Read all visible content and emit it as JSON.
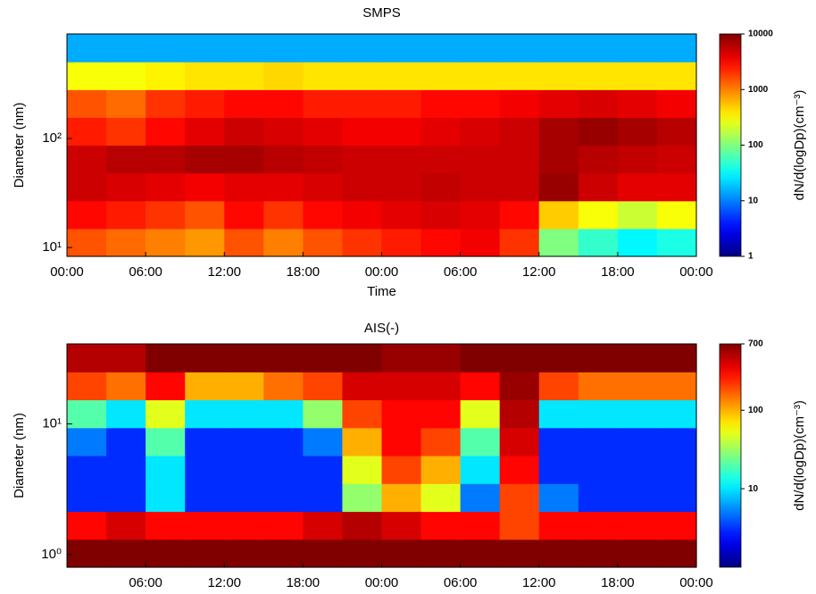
{
  "chart_data": [
    {
      "type": "heatmap",
      "title": "SMPS",
      "x_label": "Time",
      "y_label": "Diameter (nm)",
      "colorbar_label": "dN/d(logDp)(cm⁻³)",
      "colormap": "jet",
      "log_y": true,
      "log_color": true,
      "xlim": [
        0,
        48
      ],
      "xticks": [
        {
          "value": 0,
          "label": "00:00"
        },
        {
          "value": 6,
          "label": "06:00"
        },
        {
          "value": 12,
          "label": "12:00"
        },
        {
          "value": 18,
          "label": "18:00"
        },
        {
          "value": 24,
          "label": "00:00"
        },
        {
          "value": 30,
          "label": "06:00"
        },
        {
          "value": 36,
          "label": "12:00"
        },
        {
          "value": 42,
          "label": "18:00"
        },
        {
          "value": 48,
          "label": "00:00"
        }
      ],
      "ylim": [
        8.3,
        910
      ],
      "yticks": [
        {
          "value": 10,
          "label": "10¹"
        },
        {
          "value": 100,
          "label": "10²"
        }
      ],
      "clim": [
        1,
        10000
      ],
      "cticks": [
        1,
        10,
        100,
        1000,
        10000
      ],
      "z": [
        [
          1500,
          1200,
          1000,
          800,
          1500,
          1000,
          1500,
          2000,
          2500,
          3000,
          3500,
          2000,
          100,
          50,
          30,
          40
        ],
        [
          3000,
          2500,
          2000,
          1500,
          3000,
          2000,
          3000,
          3500,
          4000,
          4500,
          4000,
          3000,
          500,
          300,
          200,
          300
        ],
        [
          5000,
          4500,
          4000,
          3500,
          4000,
          4000,
          4500,
          5000,
          5000,
          5500,
          5000,
          5000,
          8000,
          5000,
          4000,
          4000
        ],
        [
          5000,
          6000,
          6000,
          7000,
          7000,
          6000,
          5500,
          5000,
          5000,
          5000,
          5000,
          5000,
          7000,
          6000,
          5500,
          5000
        ],
        [
          2500,
          2000,
          3000,
          4000,
          5000,
          4500,
          4000,
          3500,
          3500,
          4000,
          4500,
          5000,
          7000,
          8000,
          7000,
          6000
        ],
        [
          1500,
          1200,
          2000,
          2500,
          3000,
          3000,
          2500,
          2500,
          2500,
          3000,
          3000,
          3500,
          4000,
          4500,
          4000,
          3500
        ],
        [
          300,
          300,
          350,
          400,
          400,
          450,
          400,
          400,
          400,
          400,
          400,
          400,
          400,
          400,
          400,
          400
        ],
        [
          15,
          15,
          15,
          15,
          15,
          15,
          15,
          15,
          15,
          15,
          15,
          15,
          15,
          15,
          15,
          15
        ]
      ]
    },
    {
      "type": "heatmap",
      "title": "AIS(-)",
      "y_label": "Diameter (nm)",
      "colorbar_label": "dN/d(logDp)(cm⁻³)",
      "colormap": "jet",
      "log_y": true,
      "log_color": true,
      "xlim": [
        0,
        48
      ],
      "xticks": [
        {
          "value": 6,
          "label": "06:00"
        },
        {
          "value": 12,
          "label": "12:00"
        },
        {
          "value": 18,
          "label": "18:00"
        },
        {
          "value": 24,
          "label": "00:00"
        },
        {
          "value": 30,
          "label": "06:00"
        },
        {
          "value": 36,
          "label": "12:00"
        },
        {
          "value": 42,
          "label": "18:00"
        },
        {
          "value": 48,
          "label": "00:00"
        }
      ],
      "ylim": [
        0.8,
        41
      ],
      "yticks": [
        {
          "value": 1,
          "label": "10⁰"
        },
        {
          "value": 10,
          "label": "10¹"
        }
      ],
      "clim": [
        1,
        700
      ],
      "cticks": [
        10,
        100,
        700
      ],
      "z": [
        [
          700,
          700,
          700,
          700,
          700,
          700,
          700,
          700,
          700,
          700,
          700,
          700,
          700,
          700,
          700,
          700
        ],
        [
          300,
          400,
          300,
          300,
          300,
          300,
          400,
          500,
          400,
          300,
          300,
          200,
          300,
          300,
          300,
          300
        ],
        [
          3,
          3,
          10,
          3,
          3,
          3,
          3,
          30,
          100,
          50,
          5,
          200,
          5,
          3,
          3,
          3
        ],
        [
          3,
          3,
          10,
          3,
          3,
          3,
          3,
          50,
          200,
          100,
          10,
          300,
          3,
          3,
          3,
          3
        ],
        [
          5,
          3,
          20,
          3,
          3,
          3,
          5,
          100,
          300,
          200,
          20,
          400,
          3,
          3,
          3,
          3
        ],
        [
          20,
          10,
          50,
          10,
          10,
          10,
          30,
          200,
          300,
          300,
          50,
          500,
          10,
          10,
          10,
          10
        ],
        [
          200,
          150,
          300,
          100,
          100,
          150,
          200,
          400,
          400,
          400,
          300,
          600,
          200,
          150,
          150,
          150
        ],
        [
          500,
          500,
          700,
          700,
          700,
          700,
          700,
          700,
          600,
          600,
          700,
          700,
          700,
          700,
          700,
          700
        ]
      ]
    }
  ]
}
